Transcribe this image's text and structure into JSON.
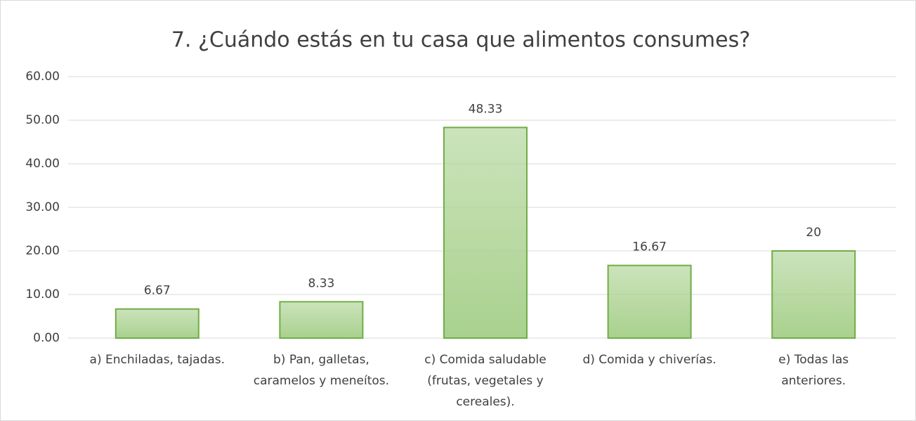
{
  "chart_data": {
    "type": "bar",
    "title": "7. ¿Cuándo estás en tu casa que alimentos consumes?",
    "categories": [
      [
        "a) Enchiladas, tajadas."
      ],
      [
        "b) Pan, galletas,",
        "caramelos y meneítos."
      ],
      [
        "c) Comida saludable",
        "(frutas, vegetales y",
        "cereales)."
      ],
      [
        "d) Comida y chiverías."
      ],
      [
        "e) Todas las",
        "anteriores."
      ]
    ],
    "values": [
      6.67,
      8.33,
      48.33,
      16.67,
      20
    ],
    "color": "#a9d18e",
    "edge_color": "#70ad47",
    "ylim": [
      0,
      60
    ],
    "yticks": [
      {
        "value": 0,
        "label": "0.00"
      },
      {
        "value": 10,
        "label": "10.00"
      },
      {
        "value": 20,
        "label": "20.00"
      },
      {
        "value": 30,
        "label": "30.00"
      },
      {
        "value": 40,
        "label": "40.00"
      },
      {
        "value": 50,
        "label": "50.00"
      },
      {
        "value": 60,
        "label": "60.00"
      }
    ],
    "grid": true
  }
}
